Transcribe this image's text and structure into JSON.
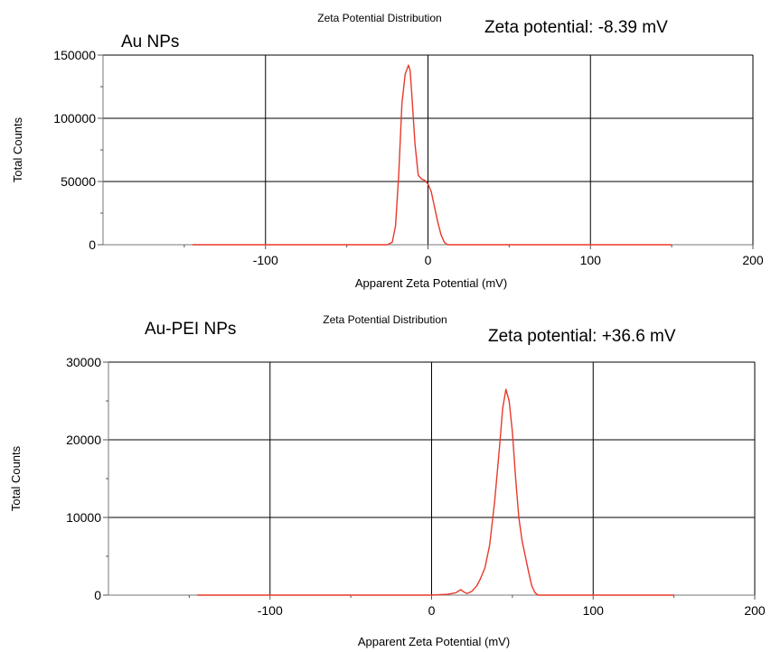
{
  "colors": {
    "series": "#e8392a",
    "grid": "#000000"
  },
  "chart_data": [
    {
      "type": "line",
      "title": "Zeta Potential Distribution",
      "sample_label": "Au NPs",
      "annotation": "Zeta potential: -8.39 mV",
      "xlabel": "Apparent Zeta Potential (mV)",
      "ylabel": "Total Counts",
      "xlim": [
        -200,
        200
      ],
      "ylim": [
        0,
        150000
      ],
      "xticks": [
        -100,
        0,
        100,
        200
      ],
      "xtick_labels": [
        "-100",
        "0",
        "100",
        "200"
      ],
      "yticks": [
        0,
        50000,
        100000,
        150000
      ],
      "ytick_labels": [
        "0",
        "50000",
        "100000",
        "150000"
      ],
      "grid": true,
      "series": [
        {
          "x": [
            -145,
            -25,
            -22,
            -20,
            -18,
            -16,
            -14,
            -12,
            -11,
            -10,
            -8,
            -6,
            -4,
            -2,
            0,
            2,
            4,
            6,
            8,
            10,
            12,
            150
          ],
          "y": [
            0,
            0,
            2000,
            15000,
            55000,
            112000,
            135000,
            142000,
            138000,
            120000,
            80000,
            55000,
            52000,
            51000,
            48000,
            42000,
            30000,
            18000,
            8000,
            2000,
            0,
            0
          ]
        }
      ]
    },
    {
      "type": "line",
      "title": "Zeta Potential Distribution",
      "sample_label": "Au-PEI NPs",
      "annotation": "Zeta potential: +36.6 mV",
      "xlabel": "Apparent Zeta Potential (mV)",
      "ylabel": "Total Counts",
      "xlim": [
        -200,
        200
      ],
      "ylim": [
        0,
        30000
      ],
      "xticks": [
        -100,
        0,
        100,
        200
      ],
      "xtick_labels": [
        "-100",
        "0",
        "100",
        "200"
      ],
      "yticks": [
        0,
        10000,
        20000,
        30000
      ],
      "ytick_labels": [
        "0",
        "10000",
        "20000",
        "30000"
      ],
      "grid": true,
      "series": [
        {
          "x": [
            -145,
            0,
            10,
            15,
            18,
            20,
            22,
            25,
            28,
            30,
            33,
            36,
            39,
            42,
            44,
            46,
            48,
            50,
            52,
            54,
            56,
            58,
            60,
            62,
            64,
            66,
            150
          ],
          "y": [
            0,
            0,
            100,
            300,
            700,
            400,
            200,
            500,
            1200,
            2000,
            3500,
            6500,
            12000,
            19000,
            24000,
            26500,
            25000,
            21000,
            15000,
            10000,
            7000,
            5000,
            3000,
            1200,
            300,
            0,
            0
          ]
        }
      ]
    }
  ]
}
